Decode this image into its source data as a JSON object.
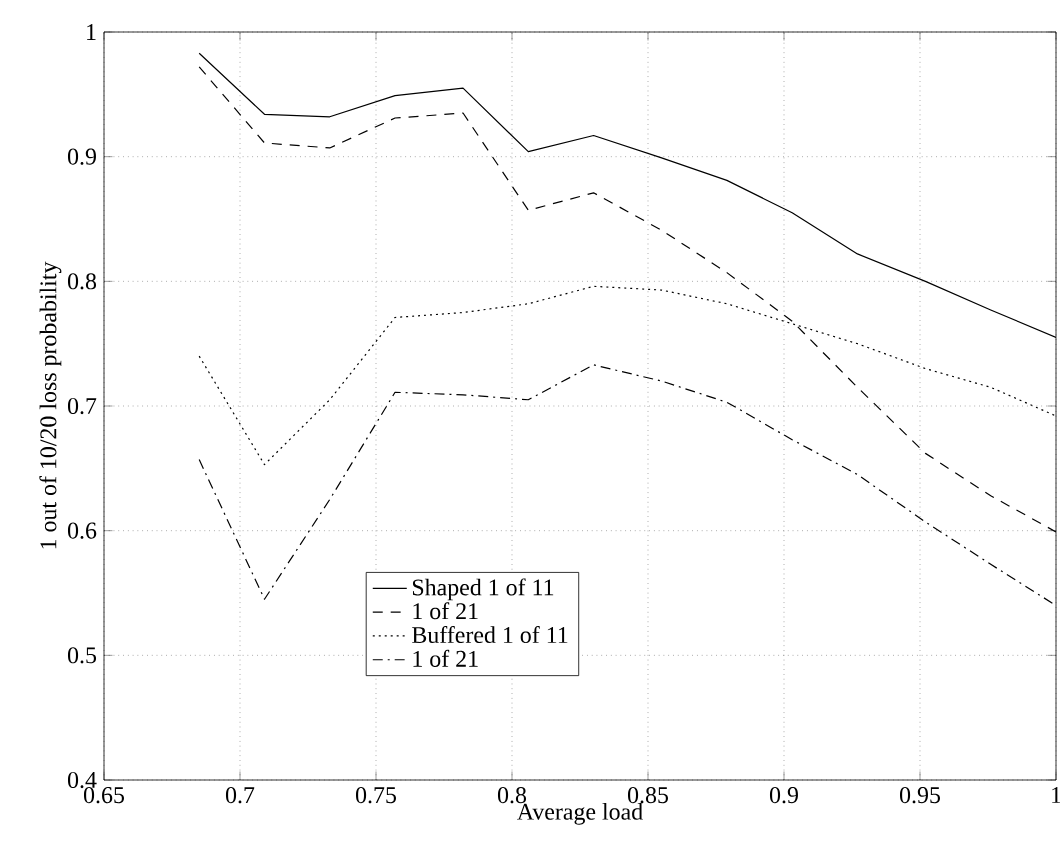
{
  "chart_data": {
    "type": "line",
    "xlabel": "Average load",
    "ylabel": "1 out of 10/20 loss probability",
    "x": [
      0.685,
      0.709,
      0.733,
      0.757,
      0.782,
      0.806,
      0.83,
      0.855,
      0.879,
      0.903,
      0.927,
      0.952,
      0.976,
      1.0
    ],
    "series": [
      {
        "name": "Shaped 1 of 11",
        "color": "#000000",
        "line_style": "solid",
        "values": [
          0.983,
          0.934,
          0.932,
          0.949,
          0.955,
          0.904,
          0.917,
          0.899,
          0.881,
          0.855,
          0.822,
          0.8,
          0.777,
          0.755
        ]
      },
      {
        "name": "1 of 21",
        "color": "#000000",
        "line_style": "dashed",
        "values": [
          0.972,
          0.911,
          0.907,
          0.931,
          0.935,
          0.857,
          0.871,
          0.841,
          0.807,
          0.768,
          0.715,
          0.662,
          0.628,
          0.599
        ]
      },
      {
        "name": "Buffered 1 of 11",
        "color": "#000000",
        "line_style": "dotted",
        "values": [
          0.74,
          0.653,
          0.705,
          0.771,
          0.775,
          0.782,
          0.796,
          0.793,
          0.782,
          0.766,
          0.75,
          0.73,
          0.715,
          0.692
        ]
      },
      {
        "name": "1 of 21",
        "color": "#000000",
        "line_style": "dashdot",
        "values": [
          0.657,
          0.545,
          0.625,
          0.711,
          0.709,
          0.705,
          0.733,
          0.72,
          0.703,
          0.673,
          0.645,
          0.607,
          0.573,
          0.54
        ]
      }
    ],
    "xlim": [
      0.65,
      1
    ],
    "ylim": [
      0.4,
      1
    ],
    "xticks": [
      0.65,
      0.7,
      0.75,
      0.8,
      0.85,
      0.9,
      0.95,
      1
    ],
    "yticks": [
      0.4,
      0.5,
      0.6,
      0.7,
      0.8,
      0.9,
      1
    ],
    "grid": true,
    "legend": "bottom",
    "marker": "none"
  }
}
